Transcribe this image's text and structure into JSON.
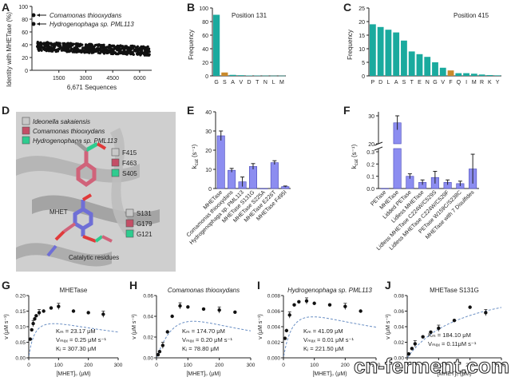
{
  "panels": {
    "A": {
      "letter": "A",
      "ylabel": "Identity with MHETase (%)",
      "xlabel": "6,671 Sequences",
      "yticks": [
        "0",
        "20",
        "40",
        "60",
        "80",
        "100"
      ],
      "xticks": [
        "1500",
        "3000",
        "4500",
        "6000"
      ],
      "annotations": [
        "Comamonas thiooxydans",
        "Hydrogenophaga sp. PML113"
      ]
    },
    "B": {
      "letter": "B",
      "title": "Position 131",
      "ylabel": "Frequency",
      "yticks": [
        "0",
        "20",
        "40",
        "60",
        "80",
        "100"
      ],
      "categories": [
        "G",
        "S",
        "A",
        "V",
        "D",
        "T",
        "N",
        "L",
        "M"
      ],
      "values": [
        90,
        5,
        1.5,
        1,
        0.6,
        0.5,
        0.4,
        0.3,
        0.3
      ],
      "highlight_index": 1
    },
    "C": {
      "letter": "C",
      "title": "Position 415",
      "ylabel": "Frequency",
      "yticks": [
        "0",
        "5",
        "10",
        "15",
        "20",
        "25"
      ],
      "categories": [
        "P",
        "D",
        "L",
        "A",
        "S",
        "T",
        "E",
        "N",
        "G",
        "V",
        "F",
        "Q",
        "I",
        "M",
        "R",
        "K",
        "Y"
      ],
      "values": [
        19,
        18,
        17,
        16,
        13,
        9,
        8,
        7,
        5,
        3,
        2,
        1,
        1,
        0.8,
        0.5,
        0.3,
        0.2
      ],
      "highlight_index": 10
    },
    "D": {
      "letter": "D",
      "legend": [
        "Ideonella sakaiensis",
        "Comamonas thiooxydans",
        "Hydrogenophaga sp. PML113"
      ],
      "legend_colors": [
        "#c8c8c8",
        "#c44e66",
        "#2ecc8f"
      ],
      "top_labels": [
        "F415",
        "F463",
        "S405"
      ],
      "bottom_labels": [
        "S131",
        "G179",
        "G121"
      ],
      "mhet_label": "MHET",
      "catalytic_label": "Catalytic residues"
    },
    "E": {
      "letter": "E",
      "ylabel": "k",
      "ylabel_sub": "cat",
      "ylabel_unit": " (s⁻¹)",
      "yticks": [
        "0",
        "10",
        "20",
        "30",
        "40"
      ],
      "categories": [
        "MHETase",
        "Comamonas thiooxydans",
        "Hydrogenophaga sp. PML113",
        "MHETase S131G",
        "MHETase S225A",
        "MHETase E226T",
        "MHETase F495I"
      ],
      "values": [
        27.5,
        9.5,
        3.5,
        11.5,
        0,
        13.5,
        1
      ],
      "errors": [
        2.5,
        1,
        2.5,
        1.5,
        0,
        1,
        0.3
      ]
    },
    "F": {
      "letter": "F",
      "ylabel": "k",
      "ylabel_sub": "cat",
      "ylabel_unit": " (s⁻¹)",
      "yticks": [
        "0.0",
        "0.1",
        "0.2",
        "0.3",
        "20",
        "30"
      ],
      "categories": [
        "PETase",
        "MHETase",
        "Lidded PETase",
        "Lidless MHETase",
        "Lidless MHETase C224W/C529S",
        "Lidless MHETase C224W/C529F",
        "PETase W159C/S238C",
        "MHETase with 7 Disulfides"
      ],
      "values": [
        0,
        27.5,
        0.1,
        0.05,
        0.09,
        0.05,
        0.04,
        0.16
      ],
      "errors": [
        0,
        2.5,
        0.02,
        0.02,
        0.05,
        0.02,
        0.02,
        0.12
      ]
    },
    "G": {
      "letter": "G",
      "title": "MHETase",
      "ylabel": "v (μM s⁻¹)",
      "xlabel": "[MHET]₀ (μM)",
      "yticks": [
        "0.00",
        "0.05",
        "0.10",
        "0.15",
        "0.20"
      ],
      "xticks": [
        "0",
        "100",
        "200",
        "300"
      ],
      "params": [
        "Kₘ = 23.17 μM",
        "Vₘₐₓ = 0.25 μM s⁻¹",
        "Kᵢ = 307.30 μM"
      ]
    },
    "H": {
      "letter": "H",
      "title": "Comamonas thiooxydans",
      "ylabel": "v (μM s⁻¹)",
      "xlabel": "[MHET]₀ (μM)",
      "yticks": [
        "0.00",
        "0.02",
        "0.04",
        "0.06"
      ],
      "xticks": [
        "0",
        "100",
        "200",
        "300"
      ],
      "params": [
        "Kₘ = 174.70 μM",
        "Vₘₐₓ = 0.20 μM s⁻¹",
        "Kᵢ = 78.80 μM"
      ]
    },
    "I": {
      "letter": "I",
      "title": "Hydrogenophaga sp. PML113",
      "ylabel": "v (μM s⁻¹)",
      "xlabel": "[MHET]₀ (μM)",
      "yticks": [
        "0.000",
        "0.002",
        "0.004",
        "0.006",
        "0.008"
      ],
      "xticks": [
        "0",
        "100",
        "200",
        "300"
      ],
      "params": [
        "Kₘ = 41.09 μM",
        "Vₘₐₓ = 0.01 μM s⁻¹",
        "Kᵢ = 221.50 μM"
      ]
    },
    "J": {
      "letter": "J",
      "title": "MHETase S131G",
      "ylabel": "v (μM s⁻¹)",
      "xlabel": "[MHET]₀ (μM)",
      "yticks": [
        "0.00",
        "0.02",
        "0.04",
        "0.06",
        "0.08"
      ],
      "xticks": [
        "0",
        "100",
        "200",
        "300"
      ],
      "params": [
        "Kₘ = 184.10 μM",
        "Vₘₐₓ = 0.11μM s⁻¹"
      ]
    }
  },
  "watermark": "cn-ferment.com",
  "colors": {
    "teal": "#1aaa9e",
    "orange": "#c98a2c",
    "bar_blue": "#8c8df0",
    "dashed": "#6a8fc4"
  },
  "chart_data": [
    {
      "type": "scatter",
      "panel": "A",
      "ylim": [
        0,
        100
      ],
      "xlim": [
        0,
        6671
      ],
      "ylabel": "Identity with MHETase (%)",
      "xlabel": "6,671 Sequences"
    },
    {
      "type": "bar",
      "panel": "B",
      "title": "Position 131",
      "ylabel": "Frequency",
      "categories": [
        "G",
        "S",
        "A",
        "V",
        "D",
        "T",
        "N",
        "L",
        "M"
      ],
      "values": [
        90,
        5,
        1.5,
        1,
        0.6,
        0.5,
        0.4,
        0.3,
        0.3
      ],
      "ylim": [
        0,
        100
      ]
    },
    {
      "type": "bar",
      "panel": "C",
      "title": "Position 415",
      "ylabel": "Frequency",
      "categories": [
        "P",
        "D",
        "L",
        "A",
        "S",
        "T",
        "E",
        "N",
        "G",
        "V",
        "F",
        "Q",
        "I",
        "M",
        "R",
        "K",
        "Y"
      ],
      "values": [
        19,
        18,
        17,
        16,
        13,
        9,
        8,
        7,
        5,
        3,
        2,
        1,
        1,
        0.8,
        0.5,
        0.3,
        0.2
      ],
      "ylim": [
        0,
        25
      ]
    },
    {
      "type": "bar",
      "panel": "E",
      "categories": [
        "MHETase",
        "Comamonas thiooxydans",
        "Hydrogenophaga sp. PML113",
        "MHETase S131G",
        "MHETase S225A",
        "MHETase E226T",
        "MHETase F495I"
      ],
      "values": [
        27.5,
        9.5,
        3.5,
        11.5,
        0,
        13.5,
        1
      ],
      "errors": [
        2.5,
        1,
        2.5,
        1.5,
        0,
        1,
        0.3
      ],
      "ylim": [
        0,
        40
      ]
    },
    {
      "type": "bar",
      "panel": "F",
      "categories": [
        "PETase",
        "MHETase",
        "Lidded PETase",
        "Lidless MHETase",
        "Lidless MHETase C224W/C529S",
        "Lidless MHETase C224W/C529F",
        "PETase W159C/S238C",
        "MHETase with 7 Disulfides"
      ],
      "values": [
        0,
        27.5,
        0.1,
        0.05,
        0.09,
        0.05,
        0.04,
        0.16
      ],
      "errors": [
        0,
        2.5,
        0.02,
        0.02,
        0.05,
        0.02,
        0.02,
        0.12
      ]
    },
    {
      "type": "scatter",
      "panel": "G",
      "title": "MHETase",
      "x": [
        5,
        10,
        15,
        20,
        25,
        35,
        50,
        75,
        100,
        150,
        200,
        250
      ],
      "y": [
        0.06,
        0.09,
        0.11,
        0.125,
        0.135,
        0.145,
        0.15,
        0.16,
        0.165,
        0.15,
        0.145,
        0.14
      ],
      "xlim": [
        0,
        300
      ],
      "ylim": [
        0,
        0.2
      ]
    },
    {
      "type": "scatter",
      "panel": "H",
      "title": "Comamonas thiooxydans",
      "x": [
        5,
        10,
        20,
        35,
        50,
        75,
        100,
        150,
        200,
        250
      ],
      "y": [
        0.003,
        0.006,
        0.012,
        0.025,
        0.04,
        0.05,
        0.049,
        0.047,
        0.046,
        0.044
      ],
      "xlim": [
        0,
        300
      ],
      "ylim": [
        0,
        0.06
      ]
    },
    {
      "type": "scatter",
      "panel": "I",
      "title": "Hydrogenophaga sp. PML113",
      "x": [
        5,
        10,
        20,
        35,
        50,
        75,
        100,
        150,
        200,
        250
      ],
      "y": [
        0.0025,
        0.0035,
        0.0055,
        0.0068,
        0.0072,
        0.0073,
        0.007,
        0.0068,
        0.0066,
        0.006
      ],
      "xlim": [
        0,
        300
      ],
      "ylim": [
        0,
        0.008
      ]
    },
    {
      "type": "scatter",
      "panel": "J",
      "title": "MHETase S131G",
      "x": [
        5,
        15,
        25,
        50,
        75,
        100,
        150,
        200,
        250
      ],
      "y": [
        0.005,
        0.012,
        0.018,
        0.027,
        0.033,
        0.038,
        0.048,
        0.065,
        0.058
      ],
      "xlim": [
        0,
        300
      ],
      "ylim": [
        0,
        0.08
      ]
    }
  ]
}
